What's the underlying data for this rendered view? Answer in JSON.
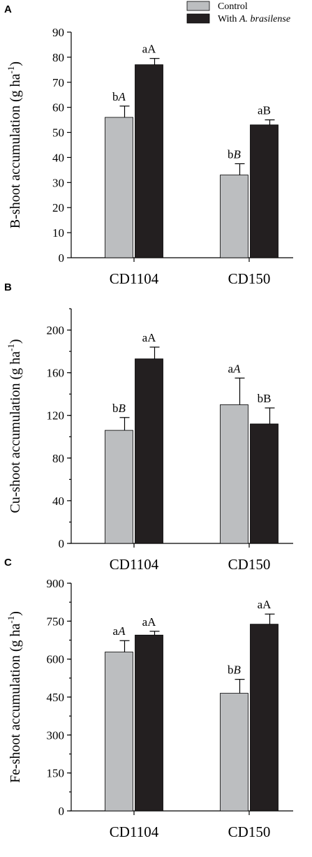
{
  "legend": {
    "items": [
      {
        "label": "Control",
        "color": "#bcbec0"
      },
      {
        "label_prefix": "With ",
        "label_italic": "A. brasilense",
        "color": "#231f20"
      }
    ]
  },
  "chart_data": [
    {
      "panel": "A",
      "type": "bar",
      "ylabel": "B-shoot accumulation (g ha",
      "ylabel_sup": "-1",
      "ylabel_tail": ")",
      "ylim": [
        0,
        90
      ],
      "yticks": [
        0,
        10,
        20,
        30,
        40,
        50,
        60,
        70,
        80,
        90
      ],
      "categories": [
        "CD1104",
        "CD150"
      ],
      "series": [
        {
          "name": "Control",
          "color": "#bcbec0",
          "values": [
            56,
            33
          ],
          "errors": [
            4.5,
            4.5
          ],
          "labels": [
            {
              "plain": "b",
              "italic": "A"
            },
            {
              "plain": "b",
              "italic": "B"
            }
          ]
        },
        {
          "name": "With A. brasilense",
          "color": "#231f20",
          "values": [
            77,
            53
          ],
          "errors": [
            2.5,
            2
          ],
          "labels": [
            {
              "plain": "aA",
              "italic": ""
            },
            {
              "plain": "aB",
              "italic": ""
            }
          ]
        }
      ]
    },
    {
      "panel": "B",
      "type": "bar",
      "ylabel": "Cu-shoot accumulation (g ha",
      "ylabel_sup": "-1",
      "ylabel_tail": ")",
      "ylim": [
        0,
        220
      ],
      "yticks": [
        0,
        40,
        80,
        120,
        160,
        200
      ],
      "minor_step": 20,
      "categories": [
        "CD1104",
        "CD150"
      ],
      "series": [
        {
          "name": "Control",
          "color": "#bcbec0",
          "values": [
            106,
            130
          ],
          "errors": [
            12,
            25
          ],
          "labels": [
            {
              "plain": "b",
              "italic": "B"
            },
            {
              "plain": "a",
              "italic": "A"
            }
          ]
        },
        {
          "name": "With A. brasilense",
          "color": "#231f20",
          "values": [
            173,
            112
          ],
          "errors": [
            11,
            15
          ],
          "labels": [
            {
              "plain": "aA",
              "italic": ""
            },
            {
              "plain": "bB",
              "italic": ""
            }
          ]
        }
      ]
    },
    {
      "panel": "C",
      "type": "bar",
      "ylabel": "Fe-shoot accumulation (g ha",
      "ylabel_sup": "-1",
      "ylabel_tail": ")",
      "ylim": [
        0,
        900
      ],
      "yticks": [
        0,
        150,
        300,
        450,
        600,
        750,
        900
      ],
      "minor_step": 75,
      "categories": [
        "CD1104",
        "CD150"
      ],
      "series": [
        {
          "name": "Control",
          "color": "#bcbec0",
          "values": [
            628,
            465
          ],
          "errors": [
            45,
            55
          ],
          "labels": [
            {
              "plain": "a",
              "italic": "A"
            },
            {
              "plain": "b",
              "italic": "B"
            }
          ]
        },
        {
          "name": "With A. brasilense",
          "color": "#231f20",
          "values": [
            695,
            738
          ],
          "errors": [
            15,
            40
          ],
          "labels": [
            {
              "plain": "aA",
              "italic": ""
            },
            {
              "plain": "aA",
              "italic": ""
            }
          ]
        }
      ]
    }
  ]
}
